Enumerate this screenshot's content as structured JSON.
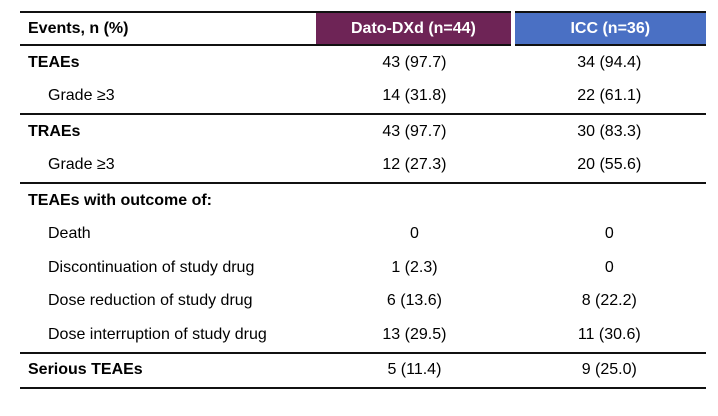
{
  "table": {
    "header": {
      "col1": "Events, n (%)",
      "col2": "Dato-DXd (n=44)",
      "col3": "ICC (n=36)"
    },
    "colors": {
      "dato_header_bg": "#6E2456",
      "icc_header_bg": "#4A70C4",
      "header_text": "#FFFFFF",
      "rule": "#111111"
    },
    "rows": [
      {
        "label": "TEAEs",
        "bold": true,
        "indent": false,
        "dato": "43 (97.7)",
        "icc": "34 (94.4)",
        "rule_after": false
      },
      {
        "label": "Grade ≥3",
        "bold": false,
        "indent": true,
        "dato": "14 (31.8)",
        "icc": "22 (61.1)",
        "rule_after": true
      },
      {
        "label": "TRAEs",
        "bold": true,
        "indent": false,
        "dato": "43 (97.7)",
        "icc": "30 (83.3)",
        "rule_after": false
      },
      {
        "label": "Grade ≥3",
        "bold": false,
        "indent": true,
        "dato": "12 (27.3)",
        "icc": "20 (55.6)",
        "rule_after": true
      },
      {
        "label": "TEAEs with outcome of:",
        "bold": true,
        "indent": false,
        "dato": "",
        "icc": "",
        "rule_after": false
      },
      {
        "label": "Death",
        "bold": false,
        "indent": true,
        "dato": "0",
        "icc": "0",
        "rule_after": false
      },
      {
        "label": "Discontinuation of study drug",
        "bold": false,
        "indent": true,
        "dato": "1 (2.3)",
        "icc": "0",
        "rule_after": false
      },
      {
        "label": "Dose reduction of study drug",
        "bold": false,
        "indent": true,
        "dato": "6 (13.6)",
        "icc": "8 (22.2)",
        "rule_after": false
      },
      {
        "label": "Dose interruption of study drug",
        "bold": false,
        "indent": true,
        "dato": "13 (29.5)",
        "icc": "11 (30.6)",
        "rule_after": true
      },
      {
        "label": "Serious TEAEs",
        "bold": true,
        "indent": false,
        "dato": "5 (11.4)",
        "icc": "9 (25.0)",
        "rule_after": false
      }
    ]
  }
}
